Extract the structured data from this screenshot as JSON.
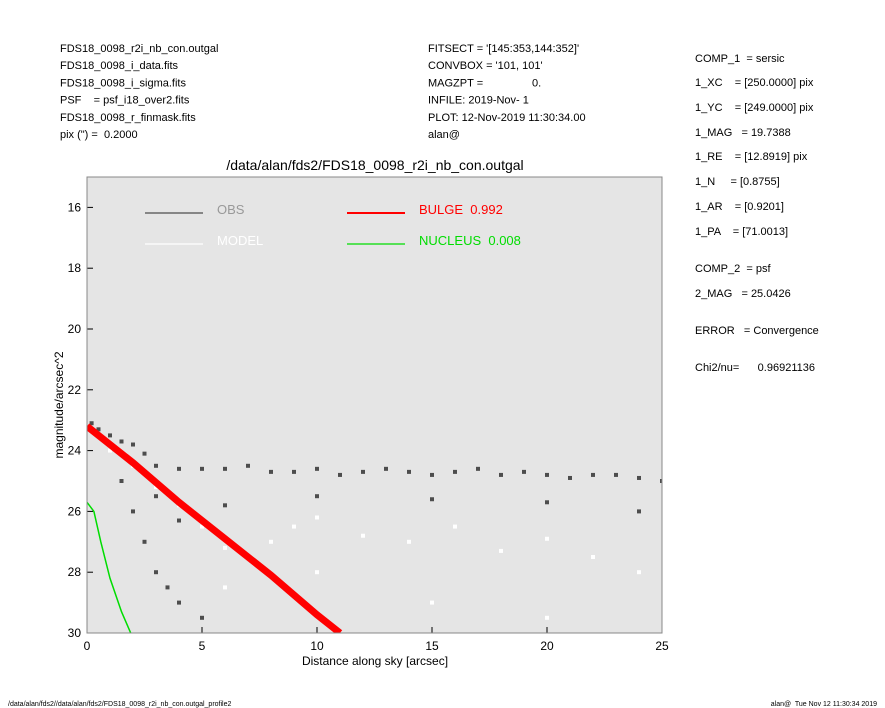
{
  "header": {
    "left": [
      "FDS18_0098_r2i_nb_con.outgal",
      "FDS18_0098_i_data.fits",
      "FDS18_0098_i_sigma.fits",
      "PSF    = psf_i18_over2.fits",
      "FDS18_0098_r_finmask.fits",
      "pix (\") =  0.2000"
    ],
    "middle": [
      "FITSECT = '[145:353,144:352]'",
      "CONVBOX = '101, 101'",
      "MAGZPT =                0.",
      "INFILE: 2019-Nov- 1",
      "PLOT: 12-Nov-2019 11:30:34.00",
      "alan@"
    ],
    "right": [
      "COMP_1  = sersic",
      "1_XC    = [250.0000] pix",
      "1_YC    = [249.0000] pix",
      "1_MAG   = 19.7388",
      "1_RE    = [12.8919] pix",
      "1_N     = [0.8755]",
      "1_AR    = [0.9201]",
      "1_PA    = [71.0013]",
      "COMP_2  = psf",
      "2_MAG   = 25.0426",
      "ERROR   = Convergence",
      "Chi2/nu=      0.96921136"
    ]
  },
  "footer": {
    "left": "/data/alan/fds2//data/alan/fds2/FDS18_0098_r2i_nb_con.outgal_profile2",
    "right": "alan@  Tue Nov 12 11:30:34 2019"
  },
  "chart_data": {
    "type": "scatter",
    "title": "/data/alan/fds2/FDS18_0098_r2i_nb_con.outgal",
    "x_label": "Distance along sky [arcsec]",
    "y_label": "magnitude/arcsec^2",
    "xlim": [
      0,
      25
    ],
    "xticks": [
      0,
      5,
      10,
      15,
      20,
      25
    ],
    "ylim": [
      15,
      30
    ],
    "yticks": [
      16,
      18,
      20,
      22,
      24,
      26,
      28,
      30
    ],
    "y_inverted": true,
    "background": "#e5e5e5",
    "series": [
      {
        "name": "OBS",
        "color": "#4d4d4d",
        "style": "markers",
        "x": [
          0.2,
          0.5,
          1,
          1.5,
          2,
          2.5,
          3,
          4,
          5,
          6,
          7,
          8,
          9,
          10,
          11,
          12,
          13,
          14,
          15,
          16,
          17,
          18,
          19,
          20,
          21,
          22,
          23,
          24,
          25,
          1.5,
          2,
          2.5,
          3,
          3.5,
          4,
          5,
          3,
          4,
          6,
          10,
          15,
          20,
          24
        ],
        "values": [
          23.1,
          23.3,
          23.5,
          23.7,
          23.8,
          24.1,
          24.5,
          24.6,
          24.6,
          24.6,
          24.5,
          24.7,
          24.7,
          24.6,
          24.8,
          24.7,
          24.6,
          24.7,
          24.8,
          24.7,
          24.6,
          24.8,
          24.7,
          24.8,
          24.9,
          24.8,
          24.8,
          24.9,
          25.0,
          25,
          26,
          27,
          28,
          28.5,
          29,
          29.5,
          25.5,
          26.3,
          25.8,
          25.5,
          25.6,
          25.7,
          26
        ]
      },
      {
        "name": "MODEL",
        "color": "#ffffff",
        "style": "markers",
        "x": [
          1,
          2,
          3,
          4,
          5,
          6,
          7,
          8,
          9,
          10,
          12,
          14,
          16,
          18,
          20,
          22,
          24,
          15,
          20,
          10,
          6
        ],
        "values": [
          24,
          24.5,
          25.2,
          25.8,
          26.5,
          27.2,
          27.5,
          27,
          26.5,
          26.2,
          26.8,
          27,
          26.5,
          27.3,
          26.9,
          27.5,
          28,
          29,
          29.5,
          28,
          28.5
        ]
      },
      {
        "name": "BULGE  0.992",
        "color": "#ff0000",
        "style": "line",
        "x": [
          0,
          2,
          4,
          6,
          8,
          10,
          11
        ],
        "values": [
          23.2,
          24.4,
          25.7,
          26.9,
          28.1,
          29.4,
          30
        ]
      },
      {
        "name": "NUCLEUS  0.008",
        "color": "#00dd00",
        "style": "line",
        "x": [
          0,
          0.3,
          0.6,
          1,
          1.5,
          1.9
        ],
        "values": [
          25.7,
          26,
          27,
          28.2,
          29.3,
          30
        ]
      }
    ]
  }
}
